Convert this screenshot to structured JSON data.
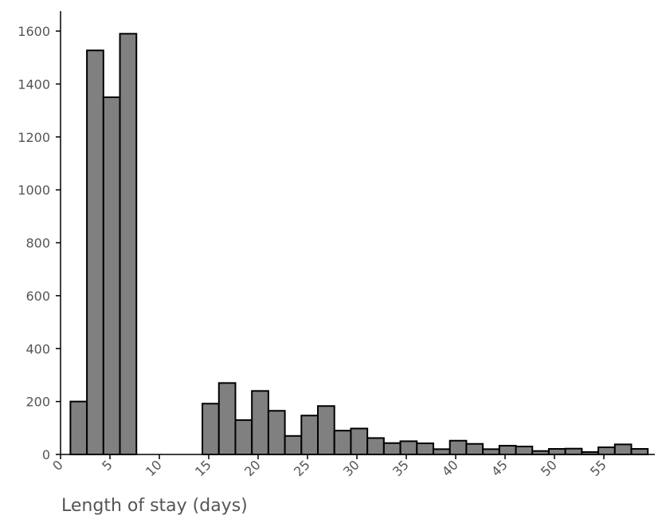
{
  "chart_data": {
    "type": "bar",
    "title": "",
    "xlabel": "Length of stay (days)",
    "ylabel": "",
    "xlim": [
      0,
      60
    ],
    "ylim": [
      0,
      1670
    ],
    "bin_width": 1.67,
    "bin_start": 1,
    "x_ticks": [
      "0",
      "5",
      "10",
      "15",
      "20",
      "25",
      "30",
      "35",
      "40",
      "45",
      "50",
      "55"
    ],
    "x_tick_values": [
      0,
      5,
      10,
      15,
      20,
      25,
      30,
      35,
      40,
      45,
      50,
      55
    ],
    "y_ticks": [
      "0",
      "200",
      "400",
      "600",
      "800",
      "1000",
      "1200",
      "1400",
      "1600"
    ],
    "y_tick_values": [
      0,
      200,
      400,
      600,
      800,
      1000,
      1200,
      1400,
      1600
    ],
    "values": [
      200,
      1527,
      1350,
      1590,
      0,
      0,
      0,
      0,
      192,
      270,
      130,
      240,
      165,
      70,
      147,
      183,
      90,
      98,
      62,
      43,
      50,
      42,
      20,
      52,
      40,
      20,
      33,
      30,
      13,
      21,
      22,
      9,
      27,
      38,
      21
    ],
    "bar_color": "#808080",
    "edge_color": "#000000",
    "grid": false,
    "legend": "none"
  }
}
